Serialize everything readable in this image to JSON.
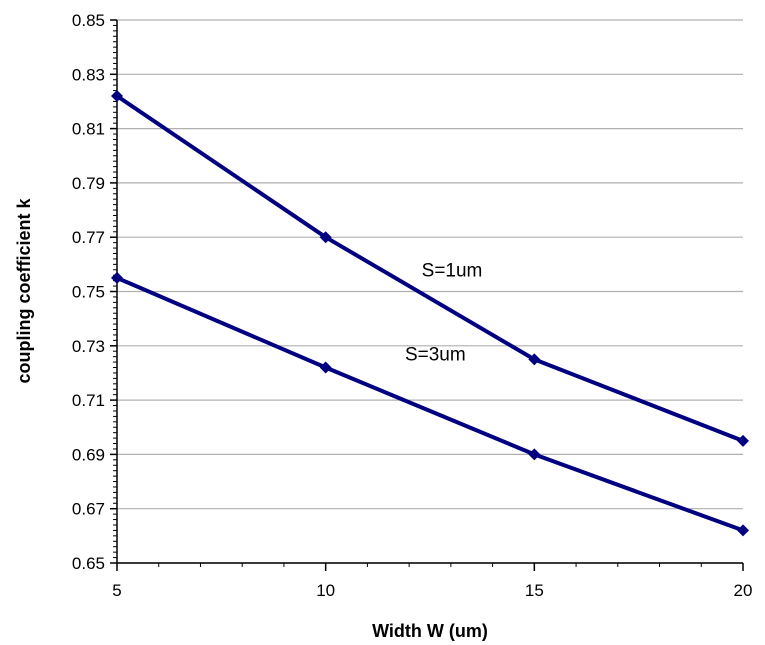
{
  "chart_data": {
    "type": "line",
    "title": "",
    "xlabel": "Width W (um)",
    "ylabel": "coupling coefficient k",
    "x": [
      5,
      10,
      15,
      20
    ],
    "xlim": [
      5,
      20
    ],
    "ylim": [
      0.65,
      0.85
    ],
    "x_ticks": [
      "5",
      "10",
      "15",
      "20"
    ],
    "y_ticks": [
      "0.65",
      "0.67",
      "0.69",
      "0.71",
      "0.73",
      "0.75",
      "0.77",
      "0.79",
      "0.81",
      "0.83",
      "0.85"
    ],
    "grid": "horizontal",
    "legend": "none",
    "series": [
      {
        "name": "S=1um",
        "values": [
          0.822,
          0.77,
          0.725,
          0.695
        ],
        "color": "#000080"
      },
      {
        "name": "S=3um",
        "values": [
          0.755,
          0.722,
          0.69,
          0.662
        ],
        "color": "#000080"
      }
    ]
  }
}
